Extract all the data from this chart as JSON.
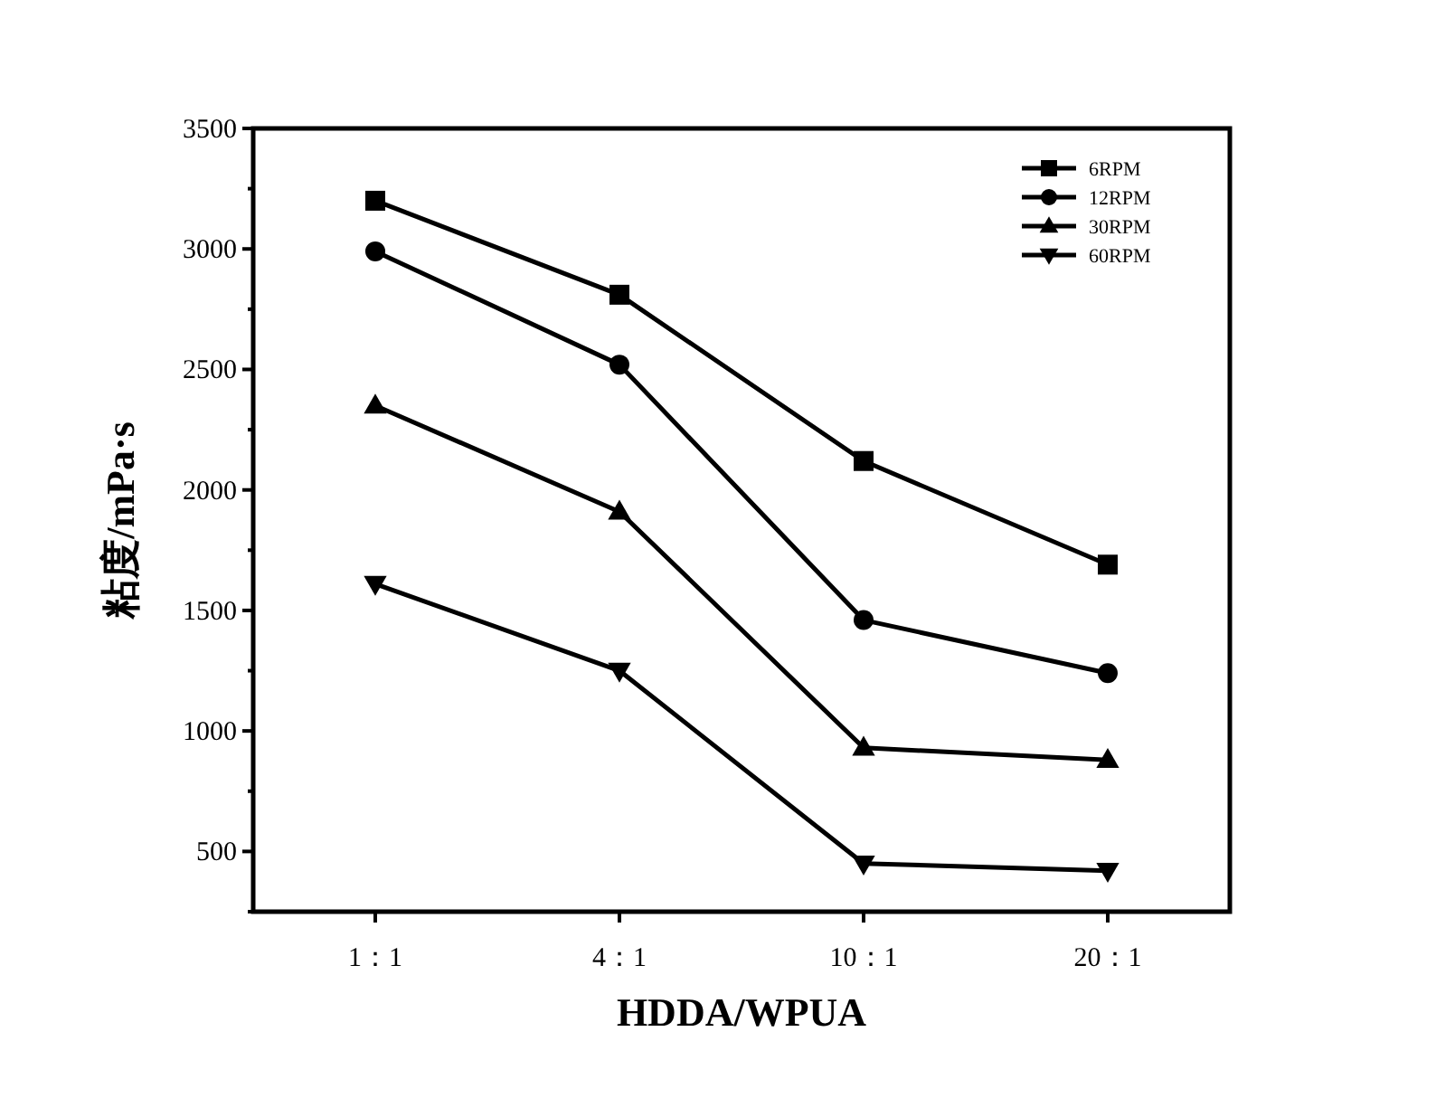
{
  "chart_data": {
    "type": "line",
    "xlabel": "HDDA/WPUA",
    "ylabel": "粘度/mPa·s",
    "categories": [
      "1：1",
      "4：1",
      "10：1",
      "20：1"
    ],
    "ylim": [
      250,
      3500
    ],
    "yticks": [
      500,
      1000,
      1500,
      2000,
      2500,
      3000,
      3500
    ],
    "grid": false,
    "legend": "top right",
    "line_style": "solid",
    "series": [
      {
        "name": "6RPM",
        "color": "#000000",
        "marker": "square",
        "values": [
          3200,
          2810,
          2120,
          1690
        ]
      },
      {
        "name": "12RPM",
        "color": "#000000",
        "marker": "circle",
        "values": [
          2990,
          2520,
          1460,
          1240
        ]
      },
      {
        "name": "30RPM",
        "color": "#000000",
        "marker": "triangle",
        "values": [
          2350,
          1910,
          930,
          880
        ]
      },
      {
        "name": "60RPM",
        "color": "#000000",
        "marker": "triangle-down",
        "values": [
          1610,
          1250,
          450,
          420
        ]
      }
    ]
  }
}
